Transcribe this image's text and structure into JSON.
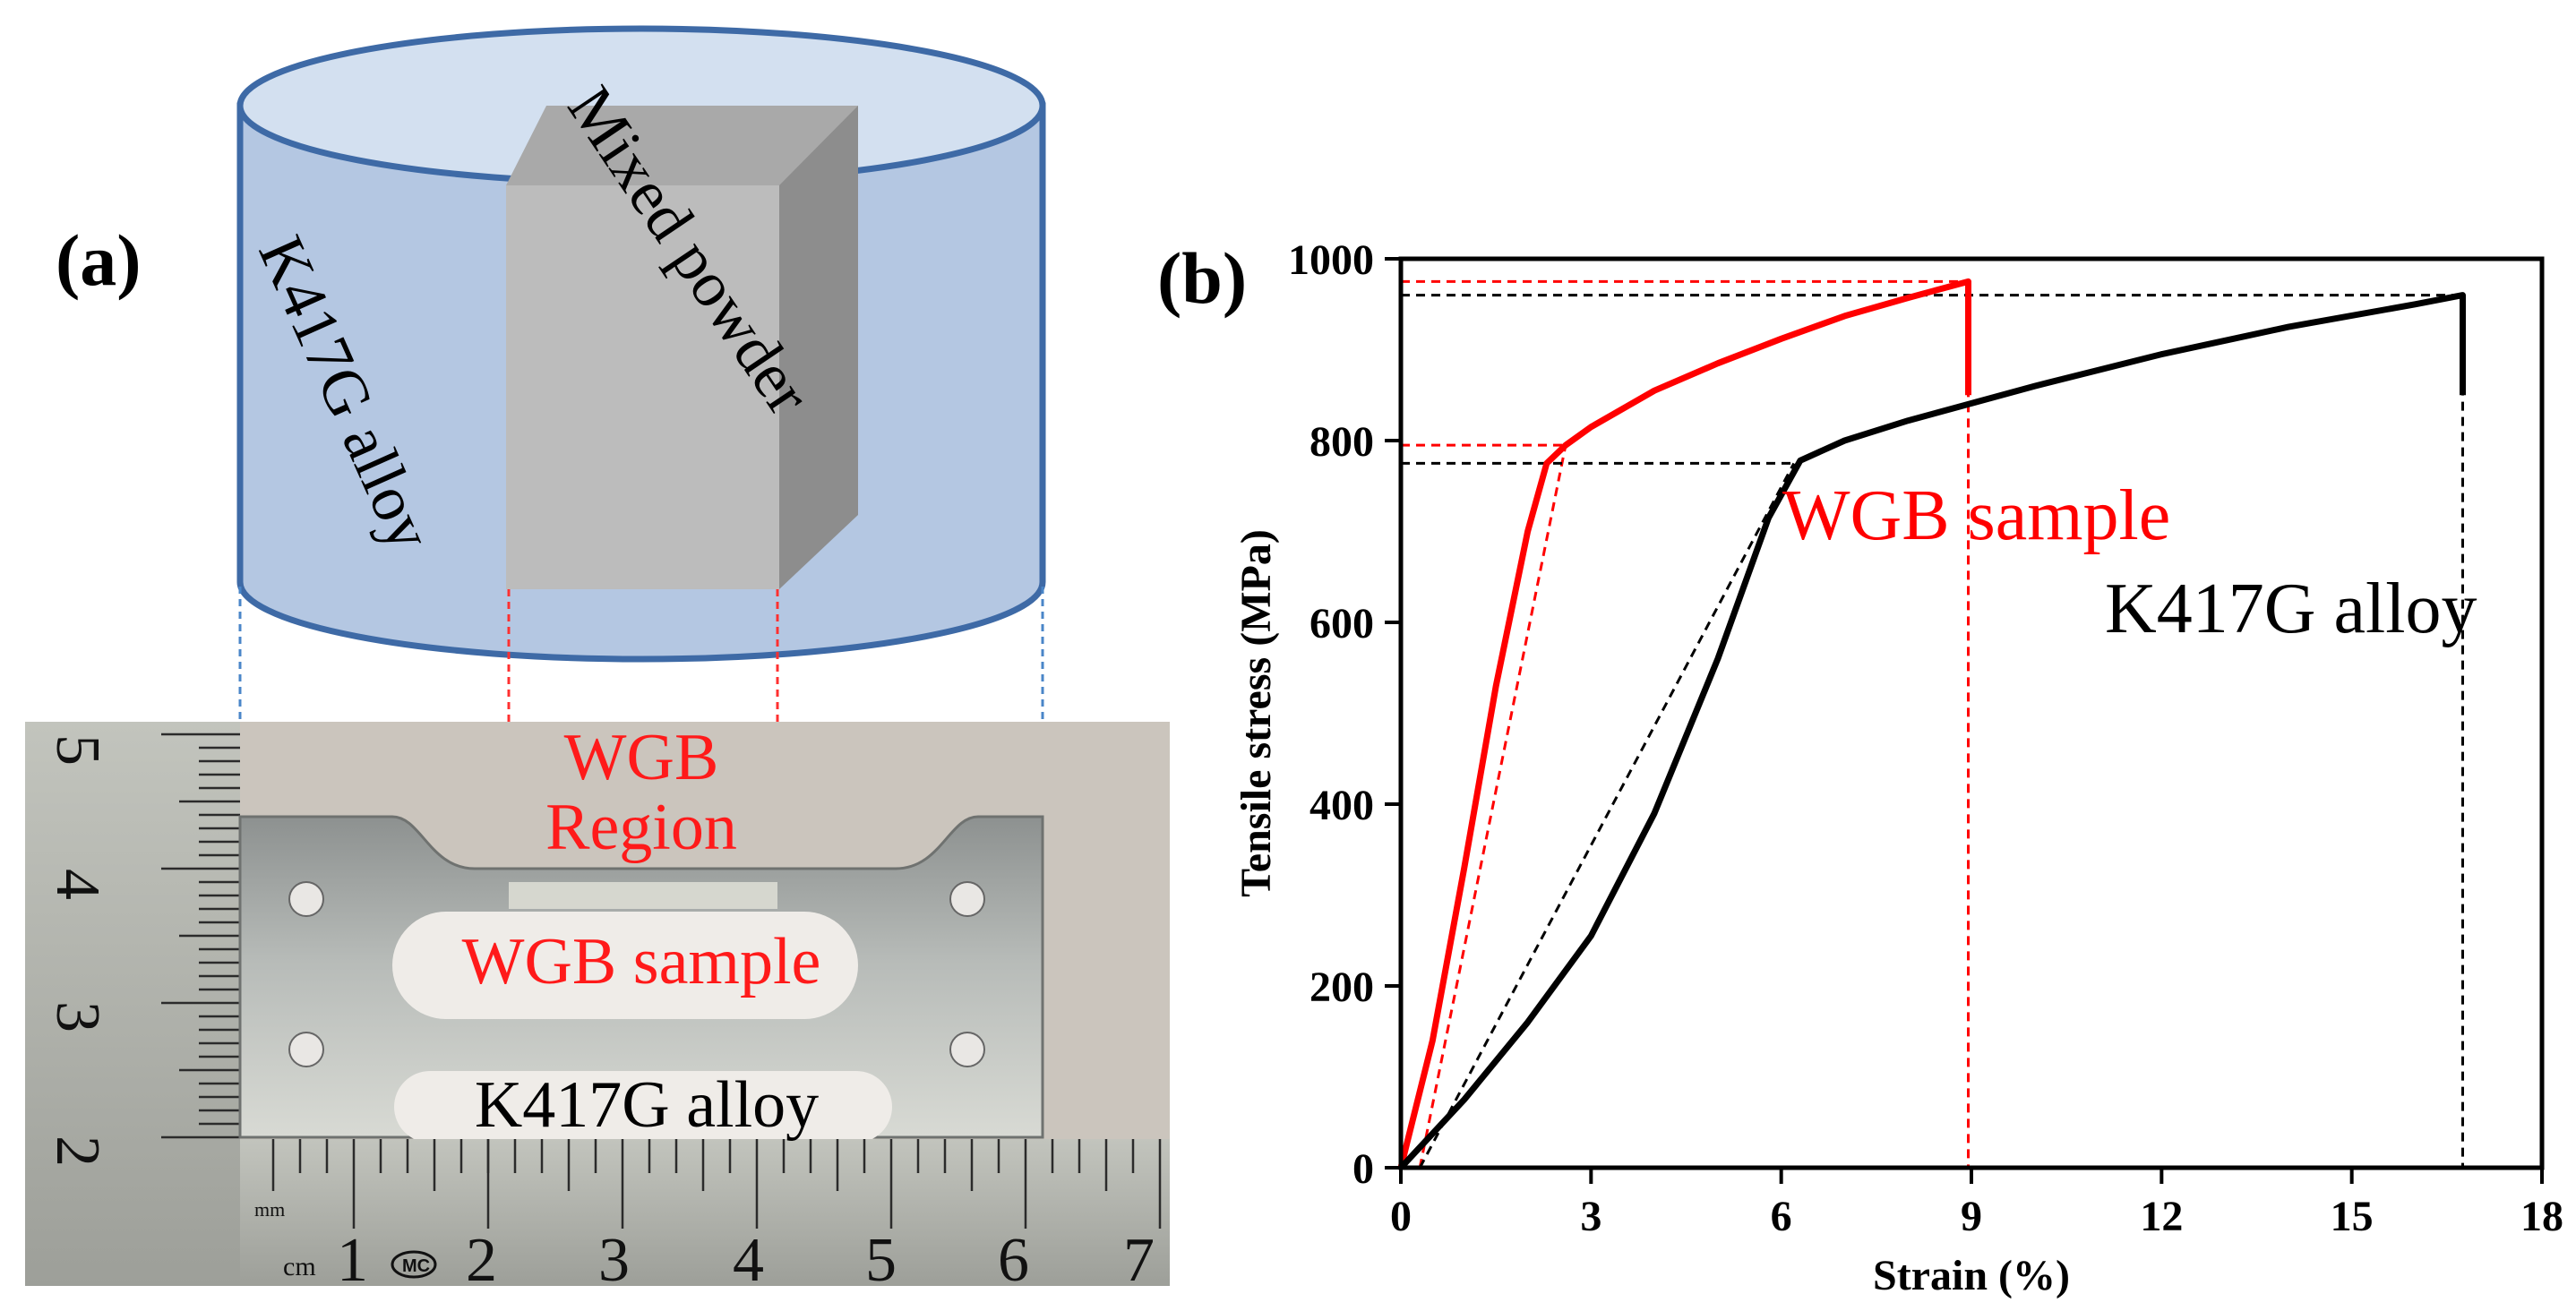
{
  "panel_a": {
    "label": "(a)",
    "cylinder_label": "K417G alloy",
    "powder_label": "Mixed powder",
    "region_label_line1": "WGB",
    "region_label_line2": "Region",
    "sample_label": "WGB sample",
    "alloy_label": "K417G alloy",
    "ruler_vertical_digits": [
      "5",
      "4",
      "3",
      "2"
    ],
    "ruler_horizontal_digits": [
      "1",
      "2",
      "3",
      "4",
      "5",
      "6",
      "7"
    ],
    "ruler_unit_mm": "mm",
    "ruler_unit_cm": "cm",
    "ruler_logo": "MC"
  },
  "chart_data": {
    "type": "line",
    "panel_label": "(b)",
    "xlabel": "Strain (%)",
    "ylabel": "Tensile stress (MPa)",
    "xlim": [
      0,
      18
    ],
    "ylim": [
      0,
      1000
    ],
    "xticks": [
      0,
      3,
      6,
      9,
      12,
      15,
      18
    ],
    "yticks": [
      0,
      200,
      400,
      600,
      800,
      1000
    ],
    "grid": false,
    "series": [
      {
        "name": "WGB sample",
        "color": "#ff0000",
        "points": [
          [
            0,
            0
          ],
          [
            0.5,
            140
          ],
          [
            1.0,
            330
          ],
          [
            1.5,
            530
          ],
          [
            2.0,
            700
          ],
          [
            2.3,
            775
          ],
          [
            2.6,
            795
          ],
          [
            3.0,
            815
          ],
          [
            4.0,
            855
          ],
          [
            5.0,
            885
          ],
          [
            6.0,
            912
          ],
          [
            7.0,
            937
          ],
          [
            8.0,
            957
          ],
          [
            8.95,
            975
          ],
          [
            8.95,
            850
          ]
        ]
      },
      {
        "name": "K417G alloy",
        "color": "#000000",
        "points": [
          [
            0,
            0
          ],
          [
            1.0,
            75
          ],
          [
            2.0,
            160
          ],
          [
            3.0,
            255
          ],
          [
            4.0,
            390
          ],
          [
            5.0,
            560
          ],
          [
            5.8,
            715
          ],
          [
            6.3,
            778
          ],
          [
            7.0,
            800
          ],
          [
            8.0,
            822
          ],
          [
            10.0,
            860
          ],
          [
            12.0,
            895
          ],
          [
            14.0,
            925
          ],
          [
            16.0,
            950
          ],
          [
            16.75,
            960
          ],
          [
            16.75,
            850
          ]
        ]
      }
    ],
    "reference_lines": [
      {
        "color": "#ff0000",
        "points": [
          [
            0,
            975
          ],
          [
            8.95,
            975
          ]
        ]
      },
      {
        "color": "#ff0000",
        "points": [
          [
            0,
            795
          ],
          [
            2.6,
            795
          ]
        ]
      },
      {
        "color": "#ff0000",
        "points": [
          [
            8.95,
            975
          ],
          [
            8.95,
            0
          ]
        ]
      },
      {
        "color": "#ff0000",
        "points": [
          [
            0.3,
            0
          ],
          [
            2.6,
            795
          ]
        ]
      },
      {
        "color": "#000000",
        "points": [
          [
            0,
            960
          ],
          [
            16.75,
            960
          ]
        ]
      },
      {
        "color": "#000000",
        "points": [
          [
            0,
            775
          ],
          [
            6.3,
            775
          ]
        ]
      },
      {
        "color": "#000000",
        "points": [
          [
            16.75,
            960
          ],
          [
            16.75,
            0
          ]
        ]
      },
      {
        "color": "#000000",
        "points": [
          [
            0.3,
            0
          ],
          [
            6.2,
            775
          ]
        ]
      }
    ]
  }
}
